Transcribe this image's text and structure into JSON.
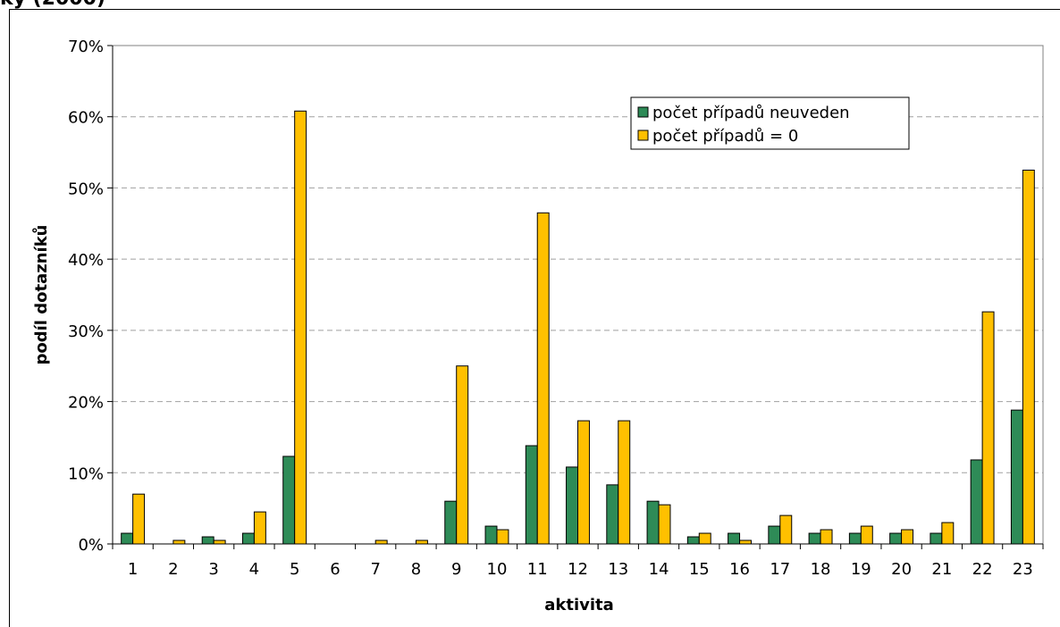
{
  "header": {
    "clipped_title": "ky (2000)"
  },
  "colors": {
    "series_green": "#2e8b57",
    "series_yellow": "#ffc000",
    "grid": "#a0a0a0"
  },
  "chart_data": {
    "type": "bar",
    "xlabel": "aktivita",
    "ylabel": "podíl dotazníků",
    "ylim": [
      0,
      70
    ],
    "yticks": [
      "0%",
      "10%",
      "20%",
      "30%",
      "40%",
      "50%",
      "60%",
      "70%"
    ],
    "grid": "horizontal dashed",
    "legend_position": "top-right",
    "categories": [
      "1",
      "2",
      "3",
      "4",
      "5",
      "6",
      "7",
      "8",
      "9",
      "10",
      "11",
      "12",
      "13",
      "14",
      "15",
      "16",
      "17",
      "18",
      "19",
      "20",
      "21",
      "22",
      "23"
    ],
    "series": [
      {
        "name": "počet případů neuveden",
        "values": [
          1.5,
          0,
          1,
          1.5,
          12.3,
          0,
          0,
          0,
          6,
          2.5,
          13.8,
          10.8,
          8.3,
          6,
          1,
          1.5,
          2.5,
          1.5,
          1.5,
          1.5,
          1.5,
          11.8,
          18.8
        ]
      },
      {
        "name": "počet případů = 0",
        "values": [
          7,
          0.5,
          0.5,
          4.5,
          60.8,
          0,
          0.5,
          0.5,
          25,
          2,
          46.5,
          17.3,
          17.3,
          5.5,
          1.5,
          0.5,
          4,
          2,
          2.5,
          2,
          3,
          32.6,
          52.5
        ]
      }
    ]
  }
}
